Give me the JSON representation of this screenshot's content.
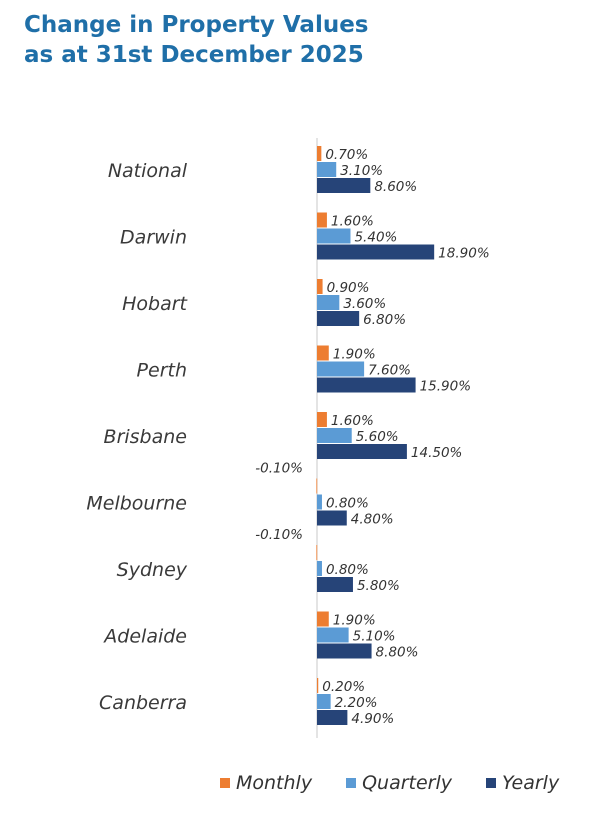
{
  "title_lines": [
    "Change in Property Values",
    "as at 31st December 2025"
  ],
  "chart_data": {
    "type": "bar",
    "orientation": "horizontal",
    "title": "Change in Property Values as at 31st December 2025",
    "categories": [
      "National",
      "Darwin",
      "Hobart",
      "Perth",
      "Brisbane",
      "Melbourne",
      "Sydney",
      "Adelaide",
      "Canberra"
    ],
    "series": [
      {
        "name": "Monthly",
        "color": "#ed7d31",
        "values": [
          0.7,
          1.6,
          0.9,
          1.9,
          1.6,
          -0.1,
          -0.1,
          1.9,
          0.2
        ],
        "labels": [
          "0.70%",
          "1.60%",
          "0.90%",
          "1.90%",
          "1.60%",
          "-0.10%",
          "-0.10%",
          "1.90%",
          "0.20%"
        ]
      },
      {
        "name": "Quarterly",
        "color": "#5b9bd5",
        "values": [
          3.1,
          5.4,
          3.6,
          7.6,
          5.6,
          0.8,
          0.8,
          5.1,
          2.2
        ],
        "labels": [
          "3.10%",
          "5.40%",
          "3.60%",
          "7.60%",
          "5.60%",
          "0.80%",
          "0.80%",
          "5.10%",
          "2.20%"
        ]
      },
      {
        "name": "Yearly",
        "color": "#264478",
        "values": [
          8.6,
          18.9,
          6.8,
          15.9,
          14.5,
          4.8,
          5.8,
          8.8,
          4.9
        ],
        "labels": [
          "8.60%",
          "18.90%",
          "6.80%",
          "15.90%",
          "14.50%",
          "4.80%",
          "5.80%",
          "8.80%",
          "4.90%"
        ]
      }
    ],
    "xlabel": "",
    "ylabel": "",
    "xlim": [
      -0.5,
      20
    ],
    "grid": false,
    "legend_position": "bottom"
  }
}
